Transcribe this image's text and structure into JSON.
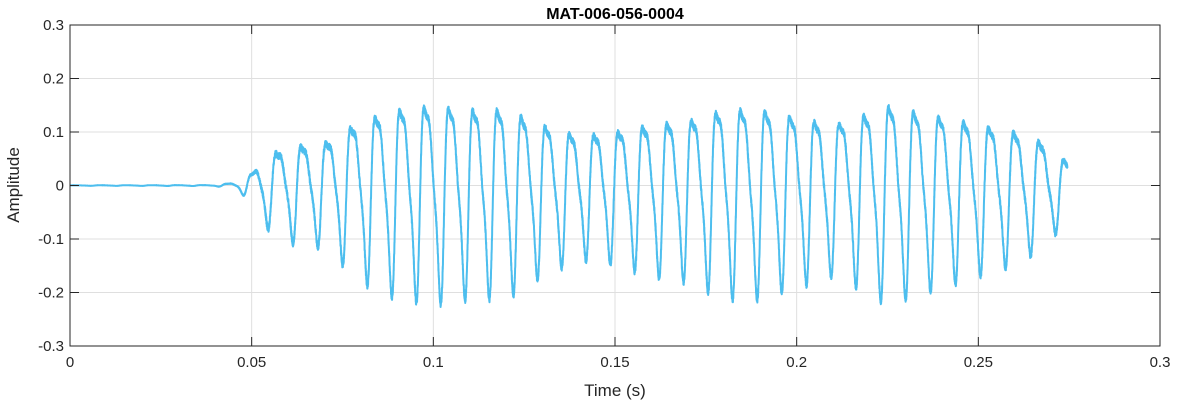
{
  "chart_data": {
    "type": "line",
    "title": "MAT-006-056-0004",
    "xlabel": "Time (s)",
    "ylabel": "Amplitude",
    "xlim": [
      0,
      0.3
    ],
    "ylim": [
      -0.3,
      0.3
    ],
    "xticks": [
      0,
      0.05,
      0.1,
      0.15,
      0.2,
      0.25,
      0.3
    ],
    "xtick_labels": [
      "0",
      "0.05",
      "0.1",
      "0.15",
      "0.2",
      "0.25",
      "0.3"
    ],
    "yticks": [
      -0.3,
      -0.2,
      -0.1,
      0,
      0.1,
      0.2,
      0.3
    ],
    "ytick_labels": [
      "-0.3",
      "-0.2",
      "-0.1",
      "0",
      "0.1",
      "0.2",
      "0.3"
    ],
    "grid": true,
    "series": [
      {
        "color": "#4DBEEE",
        "signal_end": 0.2745,
        "envelope": [
          [
            0.0,
            0.0005
          ],
          [
            0.04,
            0.001
          ],
          [
            0.046,
            0.008
          ],
          [
            0.05,
            0.03
          ],
          [
            0.053,
            0.07
          ],
          [
            0.06,
            0.1
          ],
          [
            0.07,
            0.11
          ],
          [
            0.075,
            0.14
          ],
          [
            0.08,
            0.17
          ],
          [
            0.09,
            0.2
          ],
          [
            0.1,
            0.21
          ],
          [
            0.11,
            0.2
          ],
          [
            0.12,
            0.2
          ],
          [
            0.13,
            0.16
          ],
          [
            0.14,
            0.13
          ],
          [
            0.15,
            0.14
          ],
          [
            0.16,
            0.16
          ],
          [
            0.17,
            0.17
          ],
          [
            0.18,
            0.2
          ],
          [
            0.19,
            0.2
          ],
          [
            0.2,
            0.18
          ],
          [
            0.21,
            0.16
          ],
          [
            0.22,
            0.19
          ],
          [
            0.225,
            0.21
          ],
          [
            0.23,
            0.2
          ],
          [
            0.24,
            0.18
          ],
          [
            0.25,
            0.16
          ],
          [
            0.26,
            0.14
          ],
          [
            0.268,
            0.11
          ],
          [
            0.2745,
            0.06
          ]
        ]
      }
    ]
  }
}
